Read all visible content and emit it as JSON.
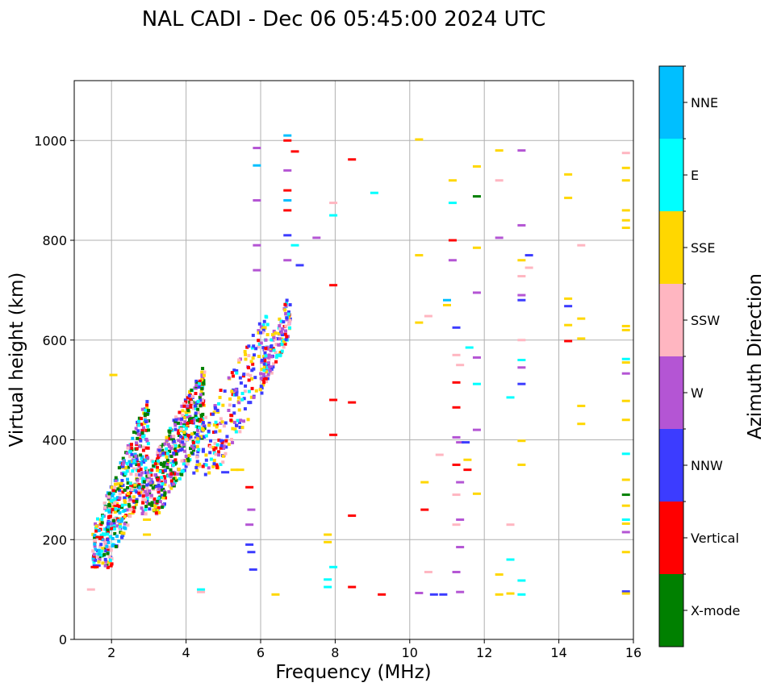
{
  "chart_data": {
    "type": "scatter",
    "title": "NAL CADI - Dec 06 05:45:00 2024 UTC",
    "xlabel": "Frequency (MHz)",
    "ylabel": "Virtual height (km)",
    "xlim": [
      1.0,
      16.0
    ],
    "ylim": [
      0,
      1120
    ],
    "xticks": [
      2,
      4,
      6,
      8,
      10,
      12,
      14,
      16
    ],
    "yticks": [
      0,
      200,
      400,
      600,
      800,
      1000
    ],
    "grid": true,
    "colorbar": {
      "label": "Azimuth Direction",
      "categories": [
        {
          "name": "X-mode",
          "color": "#008000"
        },
        {
          "name": "Vertical",
          "color": "#ff0000"
        },
        {
          "name": "NNW",
          "color": "#3c3cff"
        },
        {
          "name": "W",
          "color": "#b455d4"
        },
        {
          "name": "SSW",
          "color": "#ffb6c1"
        },
        {
          "name": "SSE",
          "color": "#ffd700"
        },
        {
          "name": "E",
          "color": "#00ffff"
        },
        {
          "name": "NNE",
          "color": "#00bfff"
        }
      ]
    },
    "clusters": [
      {
        "direction": "mixed",
        "freq_range": [
          1.5,
          3.0
        ],
        "height_range": [
          140,
          500
        ],
        "note": "dense low-frequency echoes (all directions)"
      },
      {
        "direction": "mixed",
        "freq_range": [
          2.8,
          4.5
        ],
        "height_range": [
          250,
          560
        ],
        "note": "X-mode / W / NNW dominated trace"
      },
      {
        "direction": "mixed",
        "freq_range": [
          4.2,
          6.2
        ],
        "height_range": [
          330,
          670
        ],
        "note": "NNW / SSE / W rising trace"
      },
      {
        "direction": "mixed",
        "freq_range": [
          6.0,
          6.8
        ],
        "height_range": [
          520,
          700
        ],
        "note": "W / SSW / Vertical / E cluster"
      }
    ],
    "points": [
      {
        "f": 2.05,
        "h": 530,
        "dir": "SSE"
      },
      {
        "f": 2.95,
        "h": 210,
        "dir": "SSE"
      },
      {
        "f": 2.95,
        "h": 240,
        "dir": "SSE"
      },
      {
        "f": 1.45,
        "h": 100,
        "dir": "SSW"
      },
      {
        "f": 1.6,
        "h": 148,
        "dir": "NNW"
      },
      {
        "f": 1.55,
        "h": 145,
        "dir": "Vertical"
      },
      {
        "f": 1.68,
        "h": 205,
        "dir": "Vertical"
      },
      {
        "f": 4.4,
        "h": 95,
        "dir": "SSW"
      },
      {
        "f": 4.4,
        "h": 100,
        "dir": "E"
      },
      {
        "f": 5.3,
        "h": 340,
        "dir": "SSE"
      },
      {
        "f": 5.45,
        "h": 340,
        "dir": "SSE"
      },
      {
        "f": 5.05,
        "h": 335,
        "dir": "NNW"
      },
      {
        "f": 5.7,
        "h": 190,
        "dir": "NNW"
      },
      {
        "f": 5.7,
        "h": 230,
        "dir": "W"
      },
      {
        "f": 5.75,
        "h": 175,
        "dir": "NNW"
      },
      {
        "f": 5.7,
        "h": 305,
        "dir": "Vertical"
      },
      {
        "f": 5.75,
        "h": 260,
        "dir": "W"
      },
      {
        "f": 5.8,
        "h": 140,
        "dir": "NNW"
      },
      {
        "f": 6.4,
        "h": 90,
        "dir": "SSE"
      },
      {
        "f": 6.72,
        "h": 760,
        "dir": "W"
      },
      {
        "f": 6.72,
        "h": 810,
        "dir": "NNW"
      },
      {
        "f": 6.72,
        "h": 860,
        "dir": "Vertical"
      },
      {
        "f": 6.72,
        "h": 900,
        "dir": "Vertical"
      },
      {
        "f": 6.72,
        "h": 940,
        "dir": "W"
      },
      {
        "f": 6.72,
        "h": 1010,
        "dir": "NNE"
      },
      {
        "f": 6.72,
        "h": 1000,
        "dir": "Vertical"
      },
      {
        "f": 6.72,
        "h": 880,
        "dir": "NNE"
      },
      {
        "f": 6.92,
        "h": 978,
        "dir": "Vertical"
      },
      {
        "f": 6.92,
        "h": 790,
        "dir": "E"
      },
      {
        "f": 7.05,
        "h": 750,
        "dir": "NNW"
      },
      {
        "f": 7.5,
        "h": 805,
        "dir": "W"
      },
      {
        "f": 5.9,
        "h": 985,
        "dir": "W"
      },
      {
        "f": 5.9,
        "h": 950,
        "dir": "NNE"
      },
      {
        "f": 5.9,
        "h": 880,
        "dir": "W"
      },
      {
        "f": 5.9,
        "h": 790,
        "dir": "W"
      },
      {
        "f": 5.9,
        "h": 740,
        "dir": "W"
      },
      {
        "f": 7.8,
        "h": 210,
        "dir": "SSE"
      },
      {
        "f": 7.8,
        "h": 195,
        "dir": "SSE"
      },
      {
        "f": 7.8,
        "h": 120,
        "dir": "E"
      },
      {
        "f": 7.8,
        "h": 105,
        "dir": "E"
      },
      {
        "f": 7.95,
        "h": 710,
        "dir": "Vertical"
      },
      {
        "f": 7.95,
        "h": 850,
        "dir": "E"
      },
      {
        "f": 7.95,
        "h": 875,
        "dir": "SSW"
      },
      {
        "f": 7.95,
        "h": 480,
        "dir": "Vertical"
      },
      {
        "f": 7.95,
        "h": 410,
        "dir": "Vertical"
      },
      {
        "f": 7.95,
        "h": 145,
        "dir": "E"
      },
      {
        "f": 8.45,
        "h": 105,
        "dir": "Vertical"
      },
      {
        "f": 8.45,
        "h": 248,
        "dir": "Vertical"
      },
      {
        "f": 8.45,
        "h": 475,
        "dir": "Vertical"
      },
      {
        "f": 8.45,
        "h": 962,
        "dir": "Vertical"
      },
      {
        "f": 9.05,
        "h": 895,
        "dir": "E"
      },
      {
        "f": 9.25,
        "h": 90,
        "dir": "Vertical"
      },
      {
        "f": 10.25,
        "h": 1002,
        "dir": "SSE"
      },
      {
        "f": 10.25,
        "h": 770,
        "dir": "SSE"
      },
      {
        "f": 10.25,
        "h": 635,
        "dir": "SSE"
      },
      {
        "f": 10.25,
        "h": 93,
        "dir": "W"
      },
      {
        "f": 10.4,
        "h": 260,
        "dir": "Vertical"
      },
      {
        "f": 10.4,
        "h": 315,
        "dir": "SSE"
      },
      {
        "f": 10.5,
        "h": 135,
        "dir": "SSW"
      },
      {
        "f": 10.5,
        "h": 648,
        "dir": "SSW"
      },
      {
        "f": 10.65,
        "h": 90,
        "dir": "NNW"
      },
      {
        "f": 10.8,
        "h": 370,
        "dir": "SSW"
      },
      {
        "f": 10.9,
        "h": 90,
        "dir": "NNW"
      },
      {
        "f": 11.0,
        "h": 680,
        "dir": "NNE"
      },
      {
        "f": 11.0,
        "h": 670,
        "dir": "SSE"
      },
      {
        "f": 11.15,
        "h": 920,
        "dir": "SSE"
      },
      {
        "f": 11.15,
        "h": 875,
        "dir": "E"
      },
      {
        "f": 11.15,
        "h": 800,
        "dir": "Vertical"
      },
      {
        "f": 11.15,
        "h": 760,
        "dir": "W"
      },
      {
        "f": 11.25,
        "h": 625,
        "dir": "NNW"
      },
      {
        "f": 11.25,
        "h": 570,
        "dir": "SSW"
      },
      {
        "f": 11.25,
        "h": 515,
        "dir": "Vertical"
      },
      {
        "f": 11.25,
        "h": 465,
        "dir": "Vertical"
      },
      {
        "f": 11.25,
        "h": 405,
        "dir": "W"
      },
      {
        "f": 11.25,
        "h": 350,
        "dir": "Vertical"
      },
      {
        "f": 11.25,
        "h": 290,
        "dir": "SSW"
      },
      {
        "f": 11.25,
        "h": 230,
        "dir": "SSW"
      },
      {
        "f": 11.25,
        "h": 135,
        "dir": "W"
      },
      {
        "f": 11.35,
        "h": 550,
        "dir": "SSW"
      },
      {
        "f": 11.35,
        "h": 395,
        "dir": "W"
      },
      {
        "f": 11.35,
        "h": 315,
        "dir": "W"
      },
      {
        "f": 11.35,
        "h": 240,
        "dir": "W"
      },
      {
        "f": 11.35,
        "h": 185,
        "dir": "W"
      },
      {
        "f": 11.35,
        "h": 95,
        "dir": "W"
      },
      {
        "f": 11.5,
        "h": 395,
        "dir": "NNW"
      },
      {
        "f": 11.55,
        "h": 360,
        "dir": "SSE"
      },
      {
        "f": 11.55,
        "h": 340,
        "dir": "Vertical"
      },
      {
        "f": 11.6,
        "h": 585,
        "dir": "E"
      },
      {
        "f": 11.8,
        "h": 888,
        "dir": "X-mode"
      },
      {
        "f": 11.8,
        "h": 948,
        "dir": "SSE"
      },
      {
        "f": 11.8,
        "h": 785,
        "dir": "SSE"
      },
      {
        "f": 11.8,
        "h": 695,
        "dir": "W"
      },
      {
        "f": 11.8,
        "h": 565,
        "dir": "W"
      },
      {
        "f": 11.8,
        "h": 512,
        "dir": "E"
      },
      {
        "f": 11.8,
        "h": 420,
        "dir": "W"
      },
      {
        "f": 11.8,
        "h": 292,
        "dir": "SSE"
      },
      {
        "f": 12.4,
        "h": 980,
        "dir": "SSE"
      },
      {
        "f": 12.4,
        "h": 920,
        "dir": "SSW"
      },
      {
        "f": 12.4,
        "h": 805,
        "dir": "W"
      },
      {
        "f": 12.4,
        "h": 130,
        "dir": "SSE"
      },
      {
        "f": 12.4,
        "h": 90,
        "dir": "SSE"
      },
      {
        "f": 12.7,
        "h": 230,
        "dir": "SSW"
      },
      {
        "f": 12.7,
        "h": 160,
        "dir": "E"
      },
      {
        "f": 12.7,
        "h": 485,
        "dir": "E"
      },
      {
        "f": 12.7,
        "h": 92,
        "dir": "SSE"
      },
      {
        "f": 13.0,
        "h": 980,
        "dir": "W"
      },
      {
        "f": 13.0,
        "h": 830,
        "dir": "W"
      },
      {
        "f": 13.0,
        "h": 760,
        "dir": "SSE"
      },
      {
        "f": 13.0,
        "h": 728,
        "dir": "SSW"
      },
      {
        "f": 13.0,
        "h": 690,
        "dir": "W"
      },
      {
        "f": 13.0,
        "h": 680,
        "dir": "NNW"
      },
      {
        "f": 13.0,
        "h": 600,
        "dir": "SSW"
      },
      {
        "f": 13.0,
        "h": 560,
        "dir": "E"
      },
      {
        "f": 13.0,
        "h": 545,
        "dir": "W"
      },
      {
        "f": 13.0,
        "h": 512,
        "dir": "NNW"
      },
      {
        "f": 13.0,
        "h": 398,
        "dir": "SSE"
      },
      {
        "f": 13.0,
        "h": 350,
        "dir": "SSE"
      },
      {
        "f": 13.0,
        "h": 118,
        "dir": "E"
      },
      {
        "f": 13.0,
        "h": 90,
        "dir": "E"
      },
      {
        "f": 13.2,
        "h": 770,
        "dir": "NNW"
      },
      {
        "f": 13.2,
        "h": 745,
        "dir": "SSW"
      },
      {
        "f": 14.25,
        "h": 932,
        "dir": "SSE"
      },
      {
        "f": 14.25,
        "h": 885,
        "dir": "SSE"
      },
      {
        "f": 14.25,
        "h": 683,
        "dir": "SSE"
      },
      {
        "f": 14.25,
        "h": 668,
        "dir": "NNW"
      },
      {
        "f": 14.25,
        "h": 630,
        "dir": "SSE"
      },
      {
        "f": 14.25,
        "h": 598,
        "dir": "Vertical"
      },
      {
        "f": 14.6,
        "h": 790,
        "dir": "SSW"
      },
      {
        "f": 14.6,
        "h": 643,
        "dir": "SSE"
      },
      {
        "f": 14.6,
        "h": 468,
        "dir": "SSE"
      },
      {
        "f": 14.6,
        "h": 432,
        "dir": "SSE"
      },
      {
        "f": 14.6,
        "h": 603,
        "dir": "SSE"
      },
      {
        "f": 15.8,
        "h": 975,
        "dir": "SSW"
      },
      {
        "f": 15.8,
        "h": 945,
        "dir": "SSE"
      },
      {
        "f": 15.8,
        "h": 920,
        "dir": "SSE"
      },
      {
        "f": 15.8,
        "h": 860,
        "dir": "SSE"
      },
      {
        "f": 15.8,
        "h": 840,
        "dir": "SSE"
      },
      {
        "f": 15.8,
        "h": 825,
        "dir": "SSE"
      },
      {
        "f": 15.8,
        "h": 628,
        "dir": "SSE"
      },
      {
        "f": 15.8,
        "h": 620,
        "dir": "SSE"
      },
      {
        "f": 15.8,
        "h": 562,
        "dir": "E"
      },
      {
        "f": 15.8,
        "h": 555,
        "dir": "SSE"
      },
      {
        "f": 15.8,
        "h": 533,
        "dir": "W"
      },
      {
        "f": 15.8,
        "h": 478,
        "dir": "SSE"
      },
      {
        "f": 15.8,
        "h": 440,
        "dir": "SSE"
      },
      {
        "f": 15.8,
        "h": 372,
        "dir": "E"
      },
      {
        "f": 15.8,
        "h": 320,
        "dir": "SSE"
      },
      {
        "f": 15.8,
        "h": 290,
        "dir": "X-mode"
      },
      {
        "f": 15.8,
        "h": 268,
        "dir": "SSE"
      },
      {
        "f": 15.8,
        "h": 240,
        "dir": "E"
      },
      {
        "f": 15.8,
        "h": 232,
        "dir": "SSE"
      },
      {
        "f": 15.8,
        "h": 215,
        "dir": "W"
      },
      {
        "f": 15.8,
        "h": 175,
        "dir": "SSE"
      },
      {
        "f": 15.8,
        "h": 96,
        "dir": "NNW"
      },
      {
        "f": 15.8,
        "h": 92,
        "dir": "SSE"
      }
    ]
  }
}
